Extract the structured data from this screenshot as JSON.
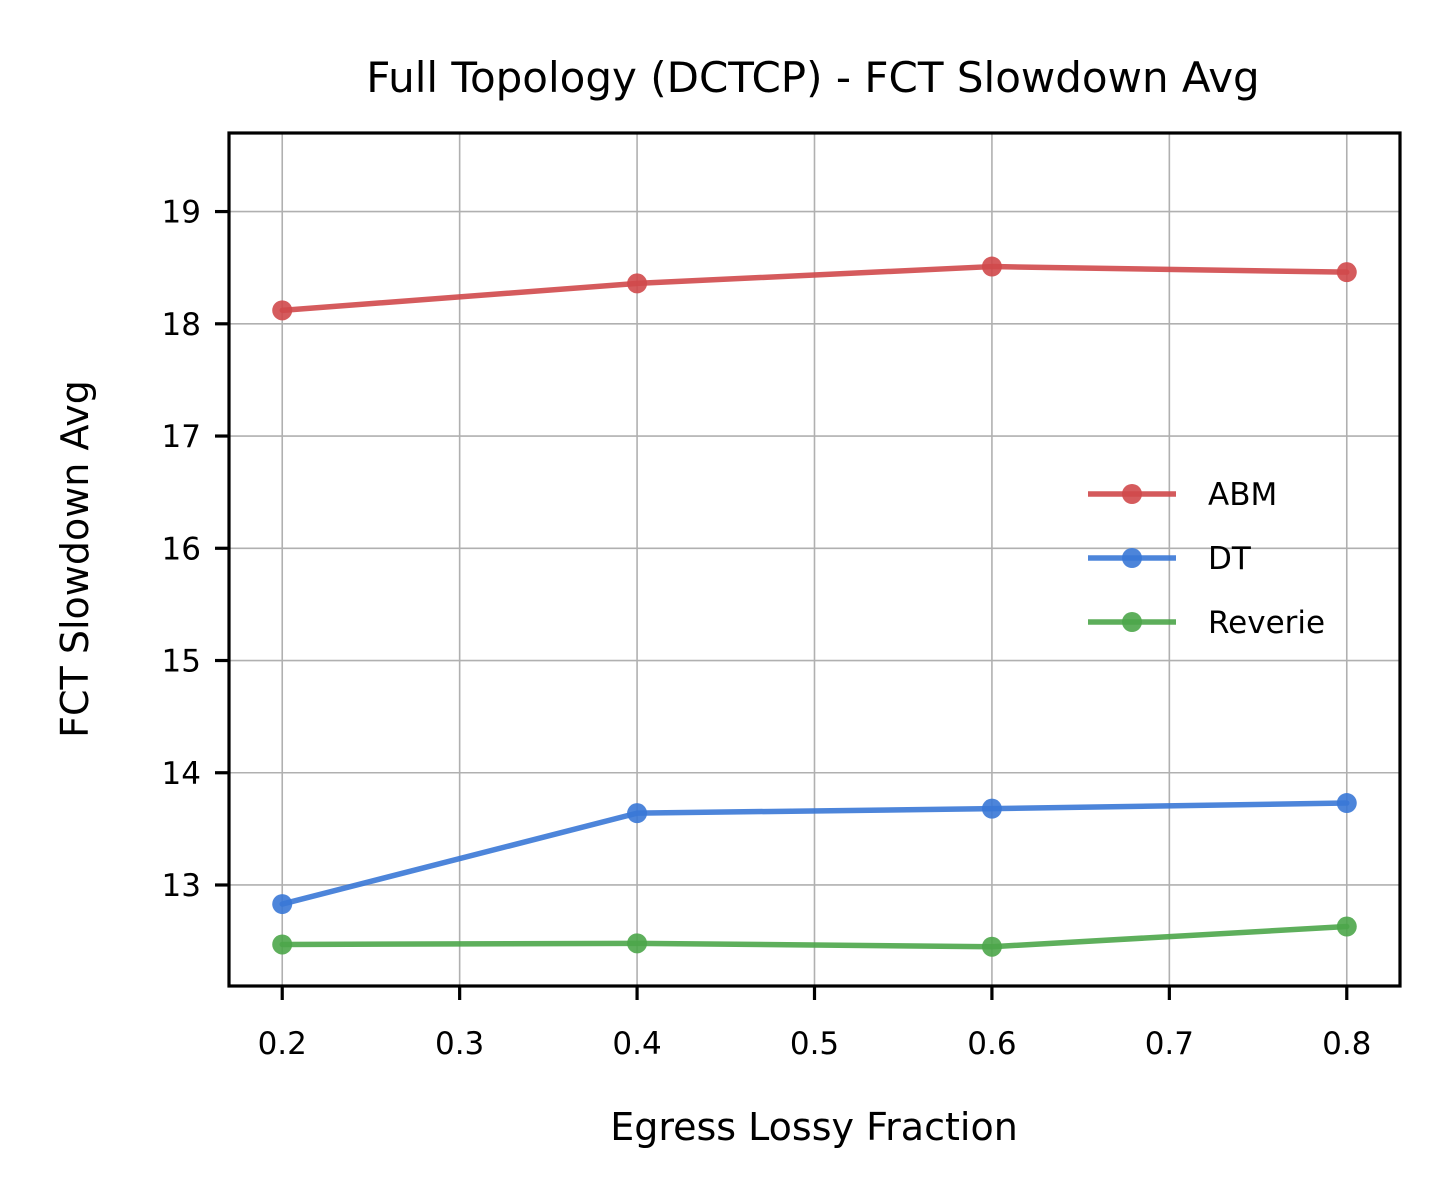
{
  "chart_data": {
    "type": "line",
    "title": "Full Topology (DCTCP) - FCT Slowdown Avg",
    "xlabel": "Egress Lossy Fraction",
    "ylabel": "FCT Slowdown Avg",
    "xlim": [
      0.17,
      0.83
    ],
    "ylim": [
      12.1,
      19.7
    ],
    "xticks": [
      0.2,
      0.3,
      0.4,
      0.5,
      0.6,
      0.7,
      0.8
    ],
    "xtick_labels": [
      "0.2",
      "0.3",
      "0.4",
      "0.5",
      "0.6",
      "0.7",
      "0.8"
    ],
    "yticks": [
      13,
      14,
      15,
      16,
      17,
      18,
      19
    ],
    "ytick_labels": [
      "13",
      "14",
      "15",
      "16",
      "17",
      "18",
      "19"
    ],
    "grid": true,
    "legend_position": "center-right",
    "x": [
      0.2,
      0.4,
      0.6,
      0.8
    ],
    "series": [
      {
        "name": "ABM",
        "color": "#d0494b",
        "values": [
          18.12,
          18.36,
          18.51,
          18.46
        ]
      },
      {
        "name": "DT",
        "color": "#3a78d6",
        "values": [
          12.83,
          13.64,
          13.68,
          13.73
        ]
      },
      {
        "name": "Reverie",
        "color": "#4ca64a",
        "values": [
          12.47,
          12.48,
          12.45,
          12.63
        ]
      }
    ]
  }
}
